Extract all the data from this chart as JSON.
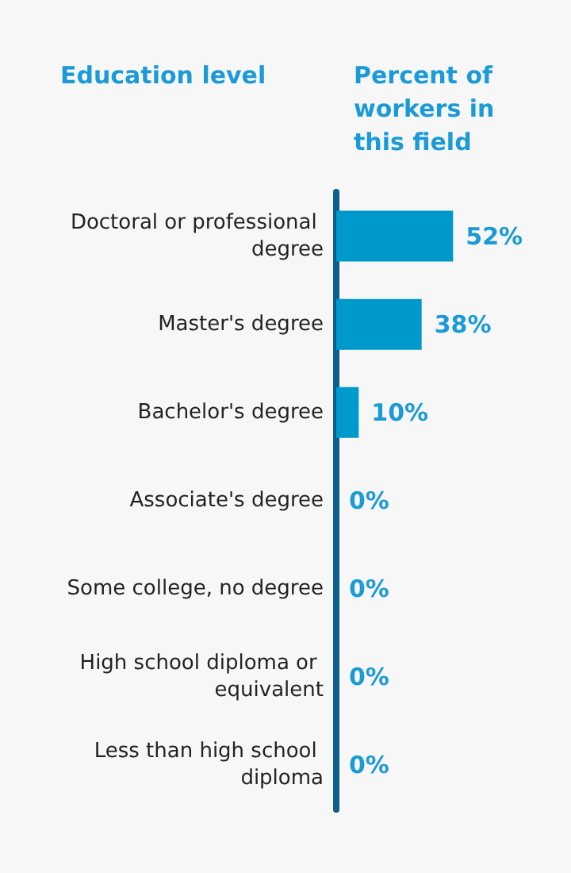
{
  "chart_data": {
    "type": "bar",
    "orientation": "horizontal",
    "ylabel": "Education level",
    "xlabel": "Percent of workers in this field",
    "categories": [
      "Doctoral or professional degree",
      "Master's degree",
      "Bachelor's degree",
      "Associate's degree",
      "Some college, no degree",
      "High school diploma or equivalent",
      "Less than high school diploma"
    ],
    "values": [
      52,
      38,
      10,
      0,
      0,
      0,
      0
    ],
    "value_labels": [
      "52%",
      "38%",
      "10%",
      "0%",
      "0%",
      "0%",
      "0%"
    ],
    "color": "#0099cc"
  }
}
